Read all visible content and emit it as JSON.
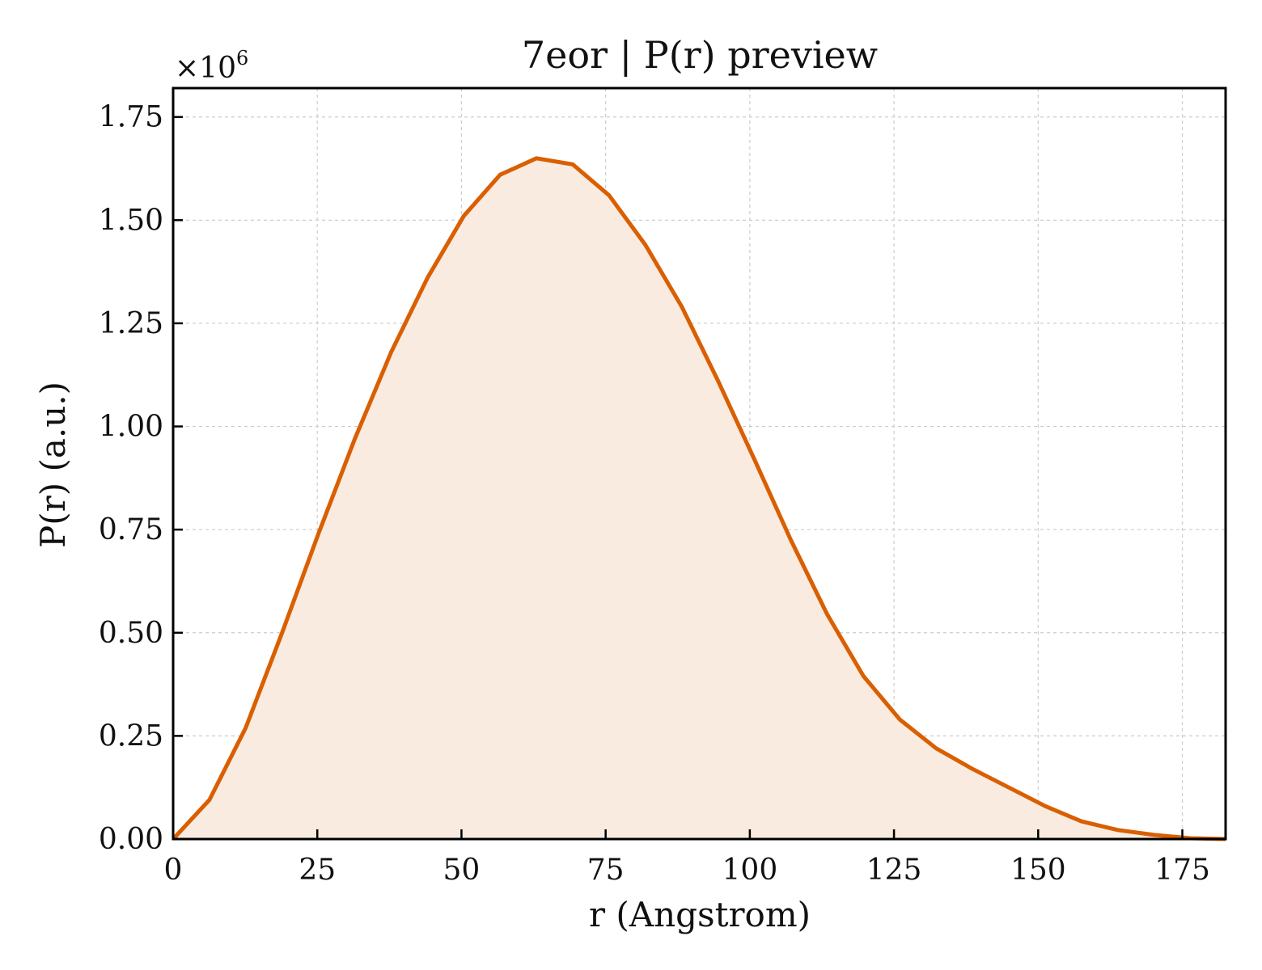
{
  "chart_data": {
    "type": "area",
    "title": "7eor | P(r) preview",
    "xlabel": "r (Angstrom)",
    "ylabel": "P(r) (a.u.)",
    "y_multiplier_label": "×10",
    "y_multiplier_exponent": "6",
    "xlim": [
      0,
      182.5
    ],
    "ylim": [
      0,
      1.82
    ],
    "x_ticks": [
      0,
      25,
      50,
      75,
      100,
      125,
      150,
      175
    ],
    "x_tick_labels": [
      "0",
      "25",
      "50",
      "75",
      "100",
      "125",
      "150",
      "175"
    ],
    "y_ticks": [
      0,
      0.25,
      0.5,
      0.75,
      1.0,
      1.25,
      1.5,
      1.75
    ],
    "y_tick_labels": [
      "0.00",
      "0.25",
      "0.50",
      "0.75",
      "1.00",
      "1.25",
      "1.50",
      "1.75"
    ],
    "grid": true,
    "line_color": "#d95f02",
    "fill_color": "#f9ebe0",
    "series": [
      {
        "x": [
          0,
          6.3,
          12.6,
          18.9,
          25.2,
          31.5,
          37.8,
          44.1,
          50.4,
          56.7,
          63.0,
          69.3,
          75.6,
          81.9,
          88.2,
          94.5,
          100.8,
          107.1,
          113.4,
          119.7,
          126.0,
          132.3,
          138.6,
          144.9,
          151.2,
          157.5,
          163.8,
          170.1,
          176.4,
          182.5
        ],
        "y": [
          0.0,
          0.095,
          0.27,
          0.5,
          0.74,
          0.97,
          1.18,
          1.36,
          1.51,
          1.61,
          1.65,
          1.635,
          1.56,
          1.44,
          1.29,
          1.11,
          0.92,
          0.725,
          0.545,
          0.395,
          0.29,
          0.22,
          0.17,
          0.125,
          0.08,
          0.043,
          0.022,
          0.01,
          0.002,
          0.0
        ]
      }
    ]
  }
}
